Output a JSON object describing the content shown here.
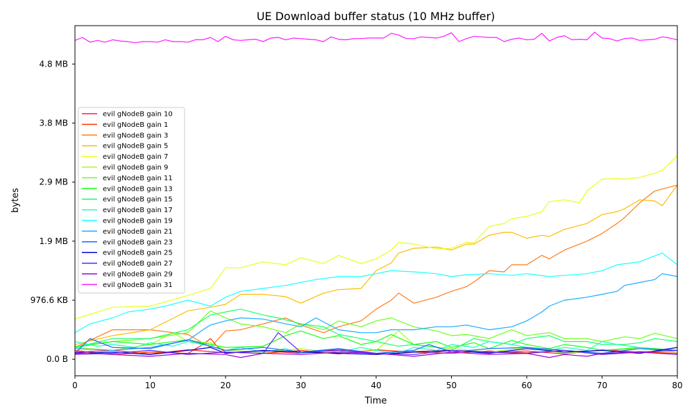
{
  "chart_data": {
    "type": "line",
    "title": "UE Download buffer status (10 MHz buffer)",
    "xlabel": "Time",
    "ylabel": "bytes",
    "xlim": [
      0,
      80
    ],
    "ylim": [
      -280000,
      5650000
    ],
    "x_ticks": [
      0,
      10,
      20,
      30,
      40,
      50,
      60,
      70,
      80
    ],
    "y_ticks": [
      {
        "value": 0,
        "label": "0.0 B"
      },
      {
        "value": 1000000,
        "label": "976.6 KB"
      },
      {
        "value": 2000000,
        "label": "1.9 MB"
      },
      {
        "value": 3000000,
        "label": "2.9 MB"
      },
      {
        "value": 4000000,
        "label": "3.8 MB"
      },
      {
        "value": 5000000,
        "label": "4.8 MB"
      }
    ],
    "grid": false,
    "legend_position": "center-left",
    "series": [
      {
        "name": "evil gNodeB gain 10",
        "color": "#ff1a3d",
        "x": [
          0,
          5,
          10,
          15,
          20,
          25,
          30,
          35,
          40,
          45,
          50,
          55,
          60,
          65,
          70,
          75,
          80
        ],
        "values": [
          120000,
          150000,
          90000,
          160000,
          110000,
          140000,
          100000,
          170000,
          80000,
          130000,
          150000,
          110000,
          140000,
          90000,
          160000,
          120000,
          100000
        ]
      },
      {
        "name": "evil gNodeB gain 1",
        "color": "#ff3300",
        "x": [
          0,
          5,
          10,
          15,
          17,
          18,
          19,
          20,
          25,
          30,
          35,
          40,
          45,
          50,
          55,
          60,
          65,
          70,
          75,
          80
        ],
        "values": [
          150000,
          80000,
          120000,
          100000,
          250000,
          350000,
          200000,
          120000,
          100000,
          150000,
          90000,
          160000,
          120000,
          100000,
          140000,
          110000,
          150000,
          90000,
          130000,
          100000
        ]
      },
      {
        "name": "evil gNodeB gain 3",
        "color": "#ff7b1a",
        "x": [
          0,
          5,
          10,
          15,
          18,
          20,
          22,
          25,
          28,
          30,
          33,
          35,
          38,
          40,
          42,
          43,
          45,
          48,
          50,
          52,
          53,
          55,
          57,
          58,
          60,
          62,
          63,
          65,
          68,
          70,
          72,
          73,
          75,
          77,
          80
        ],
        "values": [
          200000,
          500000,
          500000,
          420000,
          200000,
          480000,
          500000,
          600000,
          700000,
          580000,
          450000,
          550000,
          650000,
          850000,
          1000000,
          1120000,
          950000,
          1050000,
          1150000,
          1230000,
          1310000,
          1500000,
          1480000,
          1600000,
          1600000,
          1760000,
          1700000,
          1850000,
          2000000,
          2130000,
          2300000,
          2400000,
          2650000,
          2850000,
          2950000
        ]
      },
      {
        "name": "evil gNodeB gain 5",
        "color": "#ffbb00",
        "x": [
          0,
          5,
          10,
          15,
          18,
          20,
          22,
          25,
          28,
          30,
          33,
          35,
          38,
          40,
          42,
          43,
          45,
          48,
          50,
          52,
          53,
          55,
          57,
          58,
          60,
          62,
          63,
          65,
          68,
          70,
          72,
          73,
          75,
          77,
          78,
          80
        ],
        "values": [
          250000,
          400000,
          500000,
          820000,
          880000,
          930000,
          1100000,
          1100000,
          1060000,
          950000,
          1120000,
          1180000,
          1200000,
          1500000,
          1630000,
          1800000,
          1880000,
          1900000,
          1850000,
          1950000,
          1950000,
          2100000,
          2150000,
          2150000,
          2050000,
          2100000,
          2080000,
          2200000,
          2300000,
          2450000,
          2500000,
          2550000,
          2700000,
          2680000,
          2600000,
          2950000
        ]
      },
      {
        "name": "evil gNodeB gain 7",
        "color": "#e8ff1a",
        "x": [
          0,
          5,
          10,
          15,
          18,
          20,
          22,
          25,
          28,
          30,
          33,
          35,
          38,
          40,
          42,
          43,
          45,
          48,
          50,
          52,
          53,
          55,
          57,
          58,
          60,
          62,
          63,
          65,
          67,
          68,
          70,
          72,
          73,
          75,
          77,
          78,
          80
        ],
        "values": [
          680000,
          880000,
          900000,
          1080000,
          1200000,
          1550000,
          1550000,
          1650000,
          1600000,
          1720000,
          1620000,
          1760000,
          1620000,
          1700000,
          1850000,
          1980000,
          1950000,
          1870000,
          1880000,
          1980000,
          1970000,
          2250000,
          2300000,
          2380000,
          2420000,
          2500000,
          2670000,
          2700000,
          2650000,
          2850000,
          3050000,
          3060000,
          3050000,
          3080000,
          3150000,
          3200000,
          3450000
        ]
      },
      {
        "name": "evil gNodeB gain 9",
        "color": "#a5ff1a",
        "x": [
          0,
          5,
          10,
          13,
          15,
          18,
          20,
          25,
          30,
          35,
          40,
          43,
          45,
          50,
          55,
          60,
          65,
          70,
          75,
          80
        ],
        "values": [
          200000,
          150000,
          250000,
          450000,
          300000,
          280000,
          150000,
          120000,
          180000,
          100000,
          150000,
          480000,
          250000,
          180000,
          120000,
          200000,
          100000,
          150000,
          180000,
          120000
        ]
      },
      {
        "name": "evil gNodeB gain 11",
        "color": "#6aff1a",
        "x": [
          0,
          5,
          10,
          15,
          18,
          20,
          22,
          25,
          28,
          30,
          33,
          35,
          38,
          40,
          42,
          45,
          48,
          50,
          52,
          55,
          58,
          60,
          63,
          65,
          68,
          70,
          73,
          75,
          77,
          80
        ],
        "values": [
          220000,
          300000,
          350000,
          450000,
          820000,
          700000,
          600000,
          550000,
          450000,
          600000,
          500000,
          650000,
          550000,
          650000,
          700000,
          550000,
          480000,
          400000,
          420000,
          350000,
          500000,
          400000,
          450000,
          350000,
          350000,
          300000,
          380000,
          350000,
          440000,
          350000
        ]
      },
      {
        "name": "evil gNodeB gain 13",
        "color": "#1aff1a",
        "x": [
          0,
          5,
          10,
          15,
          20,
          25,
          28,
          30,
          33,
          35,
          38,
          40,
          42,
          45,
          48,
          50,
          53,
          55,
          58,
          60,
          63,
          65,
          68,
          70,
          75,
          80
        ],
        "values": [
          200000,
          300000,
          250000,
          330000,
          200000,
          220000,
          400000,
          480000,
          350000,
          400000,
          250000,
          300000,
          420000,
          250000,
          300000,
          200000,
          280000,
          180000,
          320000,
          250000,
          180000,
          250000,
          200000,
          150000,
          200000,
          150000
        ]
      },
      {
        "name": "evil gNodeB gain 15",
        "color": "#1aff6a",
        "x": [
          0,
          5,
          10,
          15,
          18,
          20,
          22,
          25,
          27,
          30,
          33,
          35,
          38,
          40,
          43,
          45,
          48,
          50,
          53,
          55,
          58,
          60,
          63,
          65,
          68,
          70,
          73,
          75,
          77,
          80
        ],
        "values": [
          200000,
          350000,
          350000,
          500000,
          750000,
          800000,
          850000,
          750000,
          700000,
          600000,
          550000,
          420000,
          350000,
          300000,
          220000,
          250000,
          200000,
          150000,
          350000,
          300000,
          250000,
          350000,
          400000,
          300000,
          300000,
          250000,
          250000,
          280000,
          350000,
          300000
        ]
      },
      {
        "name": "evil gNodeB gain 17",
        "color": "#1affbb",
        "x": [
          0,
          3,
          5,
          8,
          10,
          13,
          15,
          18,
          20,
          22,
          25,
          28,
          30,
          33,
          35,
          38,
          40,
          43,
          45,
          48,
          50,
          53,
          55,
          58,
          60,
          63,
          65,
          68,
          70,
          72,
          75,
          78,
          80
        ],
        "values": [
          300000,
          220000,
          250000,
          200000,
          280000,
          220000,
          300000,
          220000,
          150000,
          200000,
          120000,
          180000,
          100000,
          150000,
          120000,
          200000,
          150000,
          100000,
          200000,
          150000,
          250000,
          200000,
          300000,
          250000,
          200000,
          150000,
          200000,
          150000,
          300000,
          250000,
          200000,
          150000,
          200000
        ]
      },
      {
        "name": "evil gNodeB gain 19",
        "color": "#1affff",
        "x": [
          0,
          2,
          5,
          7,
          10,
          12,
          15,
          18,
          20,
          22,
          25,
          28,
          30,
          32,
          35,
          38,
          40,
          42,
          45,
          48,
          50,
          52,
          55,
          58,
          60,
          63,
          65,
          68,
          70,
          72,
          75,
          77,
          78,
          80
        ],
        "values": [
          450000,
          600000,
          700000,
          800000,
          850000,
          900000,
          1000000,
          900000,
          1050000,
          1150000,
          1200000,
          1250000,
          1300000,
          1350000,
          1400000,
          1400000,
          1450000,
          1500000,
          1480000,
          1450000,
          1400000,
          1430000,
          1450000,
          1420000,
          1450000,
          1400000,
          1420000,
          1450000,
          1500000,
          1600000,
          1650000,
          1750000,
          1800000,
          1600000
        ]
      },
      {
        "name": "evil gNodeB gain 21",
        "color": "#1aaaff",
        "x": [
          0,
          5,
          10,
          15,
          17,
          18,
          20,
          22,
          25,
          28,
          30,
          32,
          35,
          38,
          40,
          42,
          45,
          48,
          50,
          52,
          55,
          58,
          60,
          62,
          63,
          65,
          68,
          70,
          72,
          73,
          75,
          77,
          78,
          80
        ],
        "values": [
          180000,
          150000,
          200000,
          320000,
          500000,
          580000,
          650000,
          700000,
          680000,
          600000,
          550000,
          700000,
          500000,
          450000,
          450000,
          500000,
          500000,
          550000,
          550000,
          580000,
          500000,
          550000,
          650000,
          800000,
          900000,
          1000000,
          1050000,
          1100000,
          1150000,
          1250000,
          1300000,
          1350000,
          1450000,
          1400000
        ]
      },
      {
        "name": "evil gNodeB gain 23",
        "color": "#1a66ff",
        "x": [
          0,
          2,
          5,
          10,
          15,
          20,
          25,
          30,
          35,
          40,
          45,
          47,
          50,
          55,
          60,
          65,
          70,
          75,
          80
        ],
        "values": [
          100000,
          350000,
          200000,
          180000,
          330000,
          150000,
          200000,
          120000,
          180000,
          100000,
          150000,
          250000,
          120000,
          180000,
          200000,
          150000,
          100000,
          180000,
          150000
        ]
      },
      {
        "name": "evil gNodeB gain 25",
        "color": "#0000d9",
        "x": [
          0,
          5,
          10,
          15,
          18,
          20,
          25,
          30,
          35,
          40,
          45,
          50,
          55,
          60,
          65,
          70,
          75,
          80
        ],
        "values": [
          100000,
          120000,
          80000,
          150000,
          200000,
          100000,
          150000,
          120000,
          100000,
          80000,
          120000,
          150000,
          100000,
          180000,
          120000,
          150000,
          100000,
          200000
        ]
      },
      {
        "name": "evil gNodeB gain 27",
        "color": "#5522ee",
        "x": [
          0,
          5,
          10,
          15,
          20,
          25,
          27,
          30,
          35,
          40,
          45,
          50,
          55,
          60,
          65,
          70,
          75,
          80
        ],
        "values": [
          80000,
          100000,
          150000,
          80000,
          120000,
          100000,
          450000,
          120000,
          150000,
          100000,
          80000,
          150000,
          120000,
          100000,
          150000,
          80000,
          120000,
          150000
        ]
      },
      {
        "name": "evil gNodeB gain 29",
        "color": "#9900dd",
        "x": [
          0,
          5,
          10,
          15,
          20,
          22,
          25,
          30,
          35,
          40,
          45,
          50,
          55,
          60,
          63,
          65,
          68,
          70,
          75,
          80
        ],
        "values": [
          120000,
          80000,
          50000,
          100000,
          80000,
          30000,
          100000,
          80000,
          120000,
          100000,
          50000,
          120000,
          80000,
          100000,
          30000,
          80000,
          50000,
          100000,
          120000,
          80000
        ]
      },
      {
        "name": "evil gNodeB gain 31",
        "color": "#ff1aff",
        "x": [
          0,
          1,
          2,
          3,
          4,
          5,
          6,
          7,
          8,
          9,
          10,
          11,
          12,
          13,
          14,
          15,
          16,
          17,
          18,
          19,
          20,
          21,
          22,
          23,
          24,
          25,
          26,
          27,
          28,
          29,
          30,
          31,
          32,
          33,
          34,
          35,
          36,
          37,
          38,
          39,
          40,
          41,
          42,
          43,
          44,
          45,
          46,
          47,
          48,
          49,
          50,
          51,
          52,
          53,
          54,
          55,
          56,
          57,
          58,
          59,
          60,
          61,
          62,
          63,
          64,
          65,
          66,
          67,
          68,
          69,
          70,
          71,
          72,
          73,
          74,
          75,
          76,
          77,
          78,
          79,
          80
        ],
        "values": [
          5400000,
          5450000,
          5370000,
          5400000,
          5370000,
          5410000,
          5390000,
          5380000,
          5360000,
          5380000,
          5380000,
          5370000,
          5410000,
          5380000,
          5380000,
          5370000,
          5410000,
          5410000,
          5450000,
          5380000,
          5470000,
          5410000,
          5400000,
          5410000,
          5420000,
          5380000,
          5440000,
          5450000,
          5410000,
          5440000,
          5430000,
          5420000,
          5410000,
          5380000,
          5460000,
          5420000,
          5410000,
          5430000,
          5430000,
          5440000,
          5440000,
          5440000,
          5520000,
          5490000,
          5430000,
          5430000,
          5460000,
          5450000,
          5440000,
          5470000,
          5530000,
          5380000,
          5430000,
          5470000,
          5460000,
          5450000,
          5450000,
          5380000,
          5420000,
          5440000,
          5410000,
          5420000,
          5520000,
          5390000,
          5450000,
          5480000,
          5410000,
          5420000,
          5410000,
          5540000,
          5440000,
          5430000,
          5390000,
          5430000,
          5440000,
          5400000,
          5410000,
          5420000,
          5460000,
          5440000,
          5410000
        ]
      }
    ]
  }
}
